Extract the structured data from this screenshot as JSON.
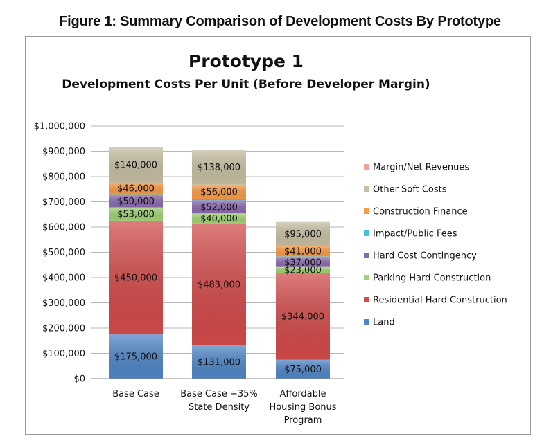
{
  "figure_title": "Figure 1: Summary Comparison of Development Costs By Prototype",
  "chart_data": {
    "type": "bar",
    "stacked": true,
    "title": "Prototype 1",
    "subtitle": "Development Costs Per Unit (Before Developer Margin)",
    "xlabel": "",
    "ylabel": "",
    "ylim": [
      0,
      1000000
    ],
    "y_ticks": [
      0,
      100000,
      200000,
      300000,
      400000,
      500000,
      600000,
      700000,
      800000,
      900000,
      1000000
    ],
    "y_tick_labels": [
      "$0",
      "$100,000",
      "$200,000",
      "$300,000",
      "$400,000",
      "$500,000",
      "$600,000",
      "$700,000",
      "$800,000",
      "$900,000",
      "$1,000,000"
    ],
    "gridlines": true,
    "legend_position": "right",
    "categories": [
      [
        "Base Case"
      ],
      [
        "Base Case +35%",
        "State Density"
      ],
      [
        "Affordable",
        "Housing Bonus",
        "Program"
      ]
    ],
    "series": [
      {
        "name": "Land",
        "color": "#4f86c6",
        "values": [
          175000,
          131000,
          75000
        ],
        "labels": [
          "$175,000",
          "$131,000",
          "$75,000"
        ]
      },
      {
        "name": "Residential Hard Construction",
        "color": "#d24a4a",
        "values": [
          450000,
          483000,
          344000
        ],
        "labels": [
          "$450,000",
          "$483,000",
          "$344,000"
        ]
      },
      {
        "name": "Parking Hard Construction",
        "color": "#9fd272",
        "values": [
          53000,
          40000,
          23000
        ],
        "labels": [
          "$53,000",
          "$40,000",
          "$23,000"
        ]
      },
      {
        "name": "Hard Cost Contingency",
        "color": "#8a6aae",
        "values": [
          50000,
          52000,
          37000
        ],
        "labels": [
          "$50,000",
          "$52,000",
          "$37,000"
        ]
      },
      {
        "name": "Impact/Public Fees",
        "color": "#47c1dc",
        "values": [
          2000,
          6000,
          5000
        ],
        "labels": [
          "",
          "",
          ""
        ]
      },
      {
        "name": "Construction Finance",
        "color": "#f79a46",
        "values": [
          46000,
          56000,
          41000
        ],
        "labels": [
          "$46,000",
          "$56,000",
          "$41,000"
        ]
      },
      {
        "name": "Other Soft Costs",
        "color": "#c6bea2",
        "values": [
          140000,
          138000,
          95000
        ],
        "labels": [
          "$140,000",
          "$138,000",
          "$95,000"
        ]
      },
      {
        "name": "Margin/Net Revenues",
        "color": "#f3a09d",
        "values": [
          0,
          0,
          0
        ],
        "labels": [
          "",
          "",
          ""
        ]
      }
    ],
    "legend_order": [
      "Margin/Net Revenues",
      "Other Soft Costs",
      "Construction Finance",
      "Impact/Public Fees",
      "Hard Cost Contingency",
      "Parking Hard Construction",
      "Residential Hard Construction",
      "Land"
    ]
  }
}
